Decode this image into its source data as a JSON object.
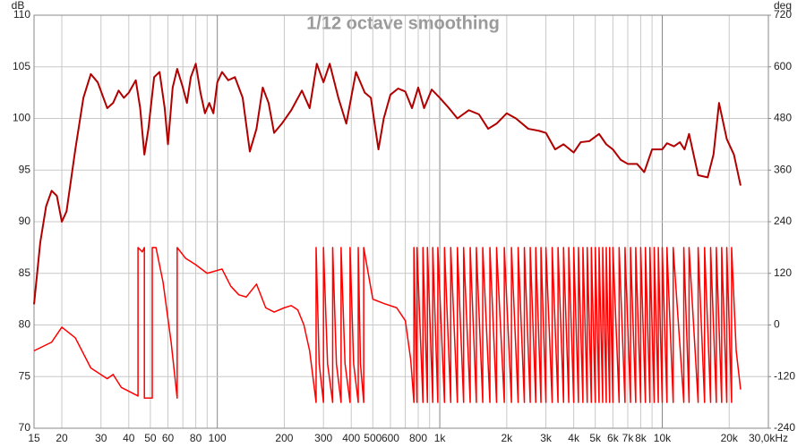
{
  "chart_data": {
    "type": "line",
    "title": "1/12 octave smoothing",
    "y_label": "dB",
    "y2_label": "deg",
    "x_scale": "log",
    "grid": true,
    "xlim": [
      15,
      30000
    ],
    "ylim": [
      70,
      110
    ],
    "y2lim": [
      -240,
      720
    ],
    "xticks": [
      15,
      20,
      30,
      40,
      50,
      60,
      80,
      100,
      200,
      300,
      400,
      500,
      600,
      800,
      {
        "value": 1000,
        "label": "1k"
      },
      {
        "value": 2000,
        "label": "2k"
      },
      {
        "value": 3000,
        "label": "3k"
      },
      {
        "value": 4000,
        "label": "4k"
      },
      {
        "value": 5000,
        "label": "5k"
      },
      {
        "value": 6000,
        "label": "6k"
      },
      {
        "value": 7000,
        "label": "7k"
      },
      {
        "value": 8000,
        "label": "8k"
      },
      {
        "value": 10000,
        "label": "10k"
      },
      {
        "value": 20000,
        "label": "20k"
      },
      {
        "value": 30000,
        "label": "30,0kHz"
      }
    ],
    "x_minor_grid": [
      70,
      90,
      700,
      900,
      9000
    ],
    "yticks": [
      70,
      75,
      80,
      85,
      90,
      95,
      100,
      105,
      110
    ],
    "y2ticks": [
      -240,
      -120,
      0,
      120,
      240,
      360,
      480,
      600,
      720
    ],
    "series": [
      {
        "color": "#ff0000",
        "axis": "y2",
        "x": [
          15,
          18,
          20,
          23,
          27,
          32,
          34,
          37,
          44,
          44,
          46,
          47,
          47,
          51,
          51,
          53,
          57,
          62,
          66,
          66,
          72,
          80,
          90,
          105,
          115,
          125,
          135,
          150,
          165,
          180,
          200,
          215,
          230,
          245,
          260,
          278,
          278,
          287,
          300,
          300,
          313,
          330,
          330,
          343,
          360,
          360,
          375,
          395,
          395,
          410,
          430,
          430,
          440,
          455,
          455,
          500,
          560,
          640,
          700,
          740,
          765,
          765,
          790,
          790,
          840,
          840,
          880,
          880,
          930,
          930,
          980,
          980,
          1050,
          1050,
          1120,
          1120,
          1200,
          1200,
          1280,
          1280,
          1370,
          1370,
          1460,
          1460,
          1560,
          1560,
          1680,
          1680,
          1800,
          1800,
          1950,
          1950,
          2100,
          2100,
          2250,
          2250,
          2400,
          2400,
          2550,
          2550,
          2700,
          2700,
          2850,
          2850,
          3000,
          3000,
          3200,
          3200,
          3400,
          3400,
          3600,
          3600,
          3800,
          3800,
          4000,
          4000,
          4200,
          4200,
          4400,
          4400,
          4600,
          4600,
          4800,
          4800,
          5000,
          5000,
          5200,
          5200,
          5400,
          5400,
          5600,
          5600,
          5800,
          5800,
          6000,
          6000,
          6400,
          6400,
          6800,
          6800,
          7200,
          7200,
          7600,
          7600,
          8000,
          8000,
          8400,
          8400,
          8800,
          8800,
          9200,
          9200,
          9600,
          9600,
          10000,
          10000,
          10500,
          10500,
          11200,
          11200,
          12500,
          12500,
          13200,
          13200,
          14500,
          14500,
          15500,
          15500,
          16500,
          16500,
          17500,
          17500,
          18500,
          18500,
          19500,
          19500,
          20500,
          20500,
          21500,
          22500
        ],
        "values": [
          -60,
          -40,
          -5,
          -30,
          -100,
          -125,
          -115,
          -145,
          -165,
          180,
          170,
          180,
          -170,
          -170,
          180,
          180,
          100,
          -40,
          -170,
          180,
          155,
          140,
          120,
          130,
          90,
          70,
          65,
          95,
          40,
          30,
          40,
          45,
          35,
          0,
          -60,
          -180,
          180,
          -90,
          -180,
          180,
          -90,
          -180,
          180,
          -90,
          -180,
          180,
          -90,
          -180,
          180,
          -90,
          -180,
          180,
          -90,
          -180,
          180,
          60,
          50,
          40,
          10,
          -80,
          -180,
          180,
          -180,
          180,
          -180,
          180,
          -180,
          180,
          -180,
          180,
          -180,
          180,
          -180,
          180,
          -180,
          180,
          -180,
          180,
          -180,
          180,
          -180,
          180,
          -180,
          180,
          -180,
          180,
          -180,
          180,
          -180,
          180,
          -180,
          180,
          -180,
          180,
          -180,
          180,
          -180,
          180,
          -180,
          180,
          -180,
          180,
          -180,
          180,
          -180,
          180,
          -180,
          180,
          -180,
          180,
          -180,
          180,
          -180,
          180,
          -180,
          180,
          -180,
          180,
          -180,
          180,
          -180,
          180,
          -180,
          180,
          -180,
          180,
          -180,
          180,
          -180,
          180,
          -180,
          180,
          -180,
          180,
          -180,
          180,
          -180,
          180,
          -180,
          180,
          -180,
          180,
          -180,
          180,
          -180,
          180,
          -180,
          180,
          -180,
          180,
          -180,
          180,
          -180,
          180,
          -180,
          180,
          -180,
          180,
          -180,
          180,
          -180,
          180,
          -180,
          180,
          -180,
          180,
          -180,
          180,
          -180,
          180,
          -180,
          180,
          -180,
          180,
          -180,
          180,
          -180,
          180,
          -60,
          -150
        ]
      },
      {
        "color": "#b00000",
        "axis": "y",
        "x": [
          15,
          16,
          17,
          18,
          19,
          20,
          21,
          23,
          25,
          27,
          29,
          32,
          34,
          36,
          38,
          40,
          43,
          45,
          47,
          49,
          52,
          55,
          58,
          60,
          63,
          66,
          70,
          73,
          76,
          80,
          84,
          88,
          92,
          96,
          100,
          105,
          112,
          120,
          130,
          140,
          150,
          160,
          170,
          180,
          195,
          215,
          240,
          260,
          280,
          300,
          320,
          350,
          380,
          420,
          460,
          490,
          530,
          560,
          600,
          650,
          700,
          750,
          800,
          850,
          920,
          1000,
          1100,
          1200,
          1350,
          1500,
          1650,
          1800,
          2000,
          2200,
          2500,
          2800,
          3000,
          3300,
          3600,
          4000,
          4300,
          4700,
          5200,
          5600,
          6000,
          6500,
          7000,
          7700,
          8300,
          9000,
          10000,
          10500,
          11300,
          12000,
          12600,
          13200,
          14500,
          16000,
          17000,
          18000,
          19500,
          21000,
          22500
        ],
        "values": [
          82,
          88,
          91.5,
          93,
          92.5,
          90,
          91,
          97,
          102,
          104.3,
          103.5,
          101,
          101.5,
          102.7,
          102,
          102.5,
          103.7,
          101,
          96.5,
          99,
          104,
          104.5,
          101,
          97.5,
          103,
          104.8,
          103,
          101.5,
          104,
          105.3,
          102.5,
          100.5,
          101.5,
          100.5,
          103.5,
          104.5,
          103.7,
          104,
          102,
          96.8,
          99,
          103,
          101.5,
          98.6,
          99.5,
          100.8,
          102.7,
          101,
          105.3,
          103.5,
          105.3,
          102,
          99.5,
          104.5,
          102.5,
          102,
          97,
          100,
          102.3,
          102.9,
          102.6,
          101,
          103,
          101,
          102.8,
          102,
          101,
          100,
          100.8,
          100.4,
          99,
          99.5,
          100.5,
          100,
          99,
          98.8,
          98.6,
          97,
          97.5,
          96.7,
          97.7,
          97.8,
          98.5,
          97.5,
          97,
          96,
          95.6,
          95.6,
          94.8,
          97,
          97,
          97.6,
          97.3,
          97.7,
          97,
          98.5,
          94.5,
          94.3,
          96.5,
          101.5,
          98,
          96.5,
          93.5
        ]
      }
    ]
  }
}
